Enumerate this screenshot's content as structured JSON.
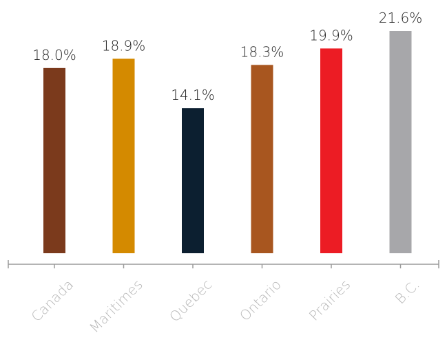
{
  "chart_data": {
    "type": "bar",
    "categories": [
      "Canada",
      "Maritimes",
      "Quebec",
      "Ontario",
      "Prairies",
      "B.C."
    ],
    "values": [
      18.0,
      18.9,
      14.1,
      18.3,
      19.9,
      21.6
    ],
    "value_labels": [
      "18.0%",
      "18.9%",
      "14.1%",
      "18.3%",
      "19.9%",
      "21.6%"
    ],
    "colors": [
      "#7b3a1c",
      "#d48a00",
      "#0c1f30",
      "#a8561f",
      "#ec1c24",
      "#a7a7aa"
    ],
    "title": "",
    "xlabel": "",
    "ylabel": "",
    "ylim": [
      0,
      21.6
    ],
    "grid": false,
    "legend": "none",
    "axis_color": "#9b9b9b",
    "category_label_color": "#b8b8b8"
  }
}
